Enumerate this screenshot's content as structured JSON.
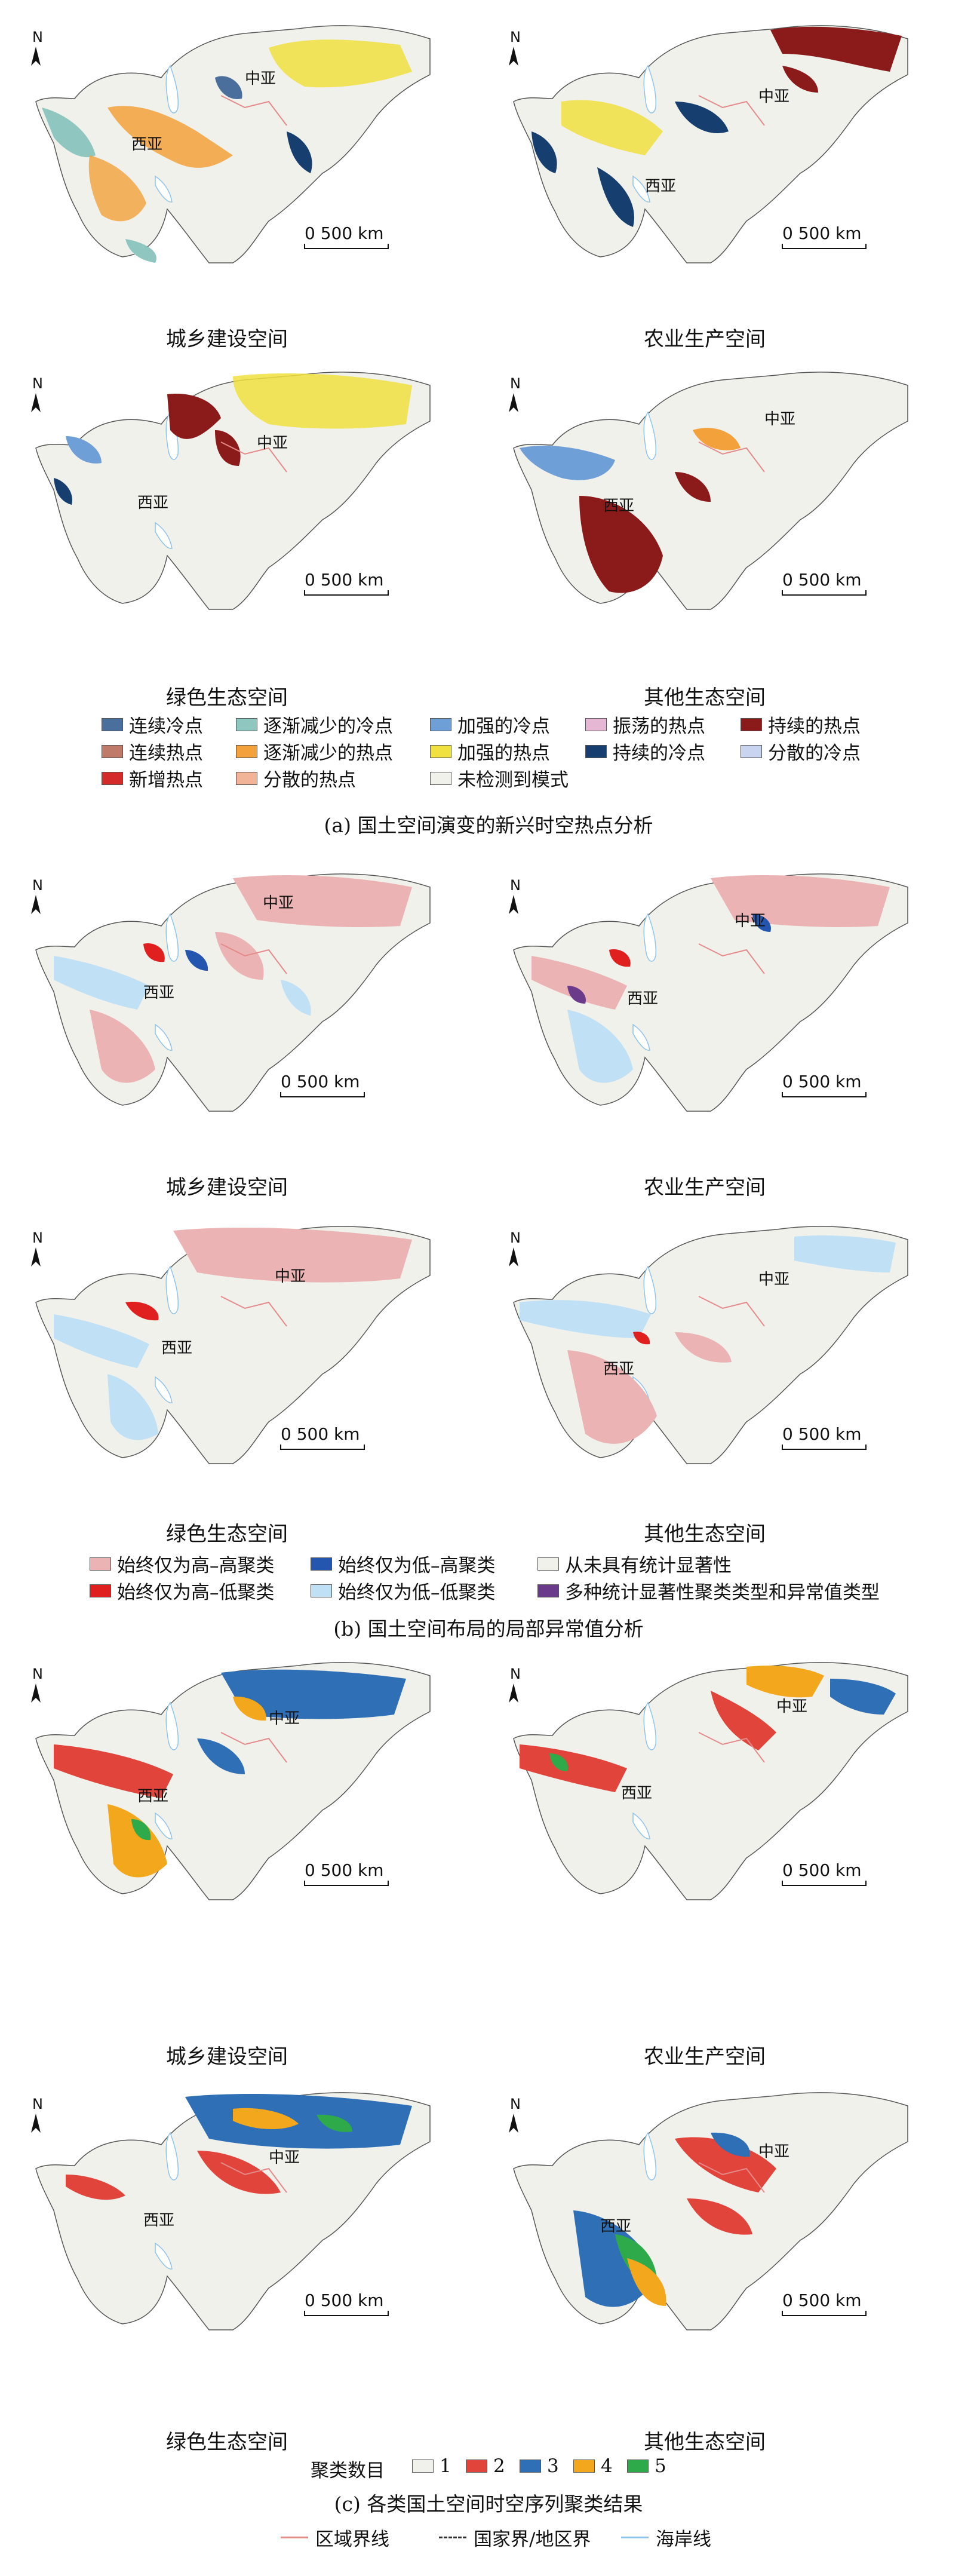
{
  "scale_text": "0   500 km",
  "north_letter": "N",
  "regions": {
    "central_asia": "中亚",
    "west_asia": "西亚"
  },
  "titles": {
    "urban": "城乡建设空间",
    "agri": "农业生产空间",
    "green": "绿色生态空间",
    "other": "其他生态空间"
  },
  "section_a": {
    "caption": "(a) 国土空间演变的新兴时空热点分析",
    "legend": [
      {
        "label": "连续冷点",
        "color": "#4a6f9c"
      },
      {
        "label": "逐渐减少的冷点",
        "color": "#8fc7c0"
      },
      {
        "label": "加强的冷点",
        "color": "#6e9fd6"
      },
      {
        "label": "振荡的热点",
        "color": "#e6b7d4"
      },
      {
        "label": "持续的热点",
        "color": "#8b1a1a"
      },
      {
        "label": "连续热点",
        "color": "#c07a6a"
      },
      {
        "label": "逐渐减少的热点",
        "color": "#f3a13a"
      },
      {
        "label": "加强的热点",
        "color": "#f0e040"
      },
      {
        "label": "持续的冷点",
        "color": "#163e6e"
      },
      {
        "label": "分散的冷点",
        "color": "#c8d4f0"
      },
      {
        "label": "新增热点",
        "color": "#d42a2a"
      },
      {
        "label": "分散的热点",
        "color": "#f2b497"
      },
      {
        "label": "未检测到模式",
        "color": "#f1f1ec"
      }
    ]
  },
  "section_b": {
    "caption": "(b) 国土空间布局的局部异常值分析",
    "legend": [
      {
        "label": "始终仅为高–高聚类",
        "color": "#ebb3b3"
      },
      {
        "label": "始终仅为低–高聚类",
        "color": "#2456b0"
      },
      {
        "label": "从未具有统计显著性",
        "color": "#f1f1ec"
      },
      {
        "label": "始终仅为高–低聚类",
        "color": "#e01f1f"
      },
      {
        "label": "始终仅为低–低聚类",
        "color": "#bfe0f5"
      },
      {
        "label": "多种统计显著性聚类类型和异常值类型",
        "color": "#6b3a8a"
      }
    ]
  },
  "section_c": {
    "caption": "(c) 各类国土空间时空序列聚类结果",
    "legend_title": "聚类数目",
    "legend": [
      {
        "label": "1",
        "color": "#f1f1ec"
      },
      {
        "label": "2",
        "color": "#e0443a"
      },
      {
        "label": "3",
        "color": "#2e6fb5"
      },
      {
        "label": "4",
        "color": "#f2a71c"
      },
      {
        "label": "5",
        "color": "#2faa4a"
      }
    ]
  },
  "bottom_legend": [
    {
      "label": "区域界线",
      "color": "#e58a8a",
      "style": "solid"
    },
    {
      "label": "国家界/地区界",
      "color": "#333333",
      "style": "dashdot"
    },
    {
      "label": "海岸线",
      "color": "#8ec4ea",
      "style": "solid"
    }
  ]
}
